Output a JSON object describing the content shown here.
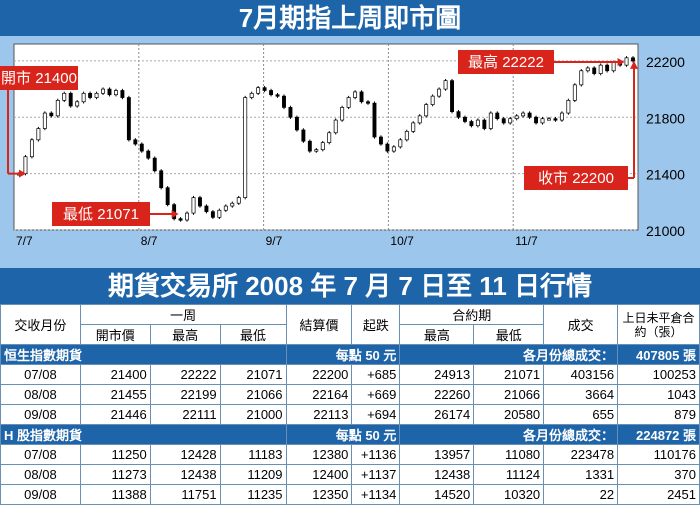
{
  "chart_title": "7月期指上周即市圖",
  "chart_data": {
    "type": "line",
    "x_labels": [
      "7/7",
      "8/7",
      "9/7",
      "10/7",
      "11/7"
    ],
    "y_ticks": [
      21000,
      21400,
      21800,
      22200
    ],
    "ylim": [
      21000,
      22320
    ],
    "series": [
      {
        "values": [
          21400,
          21520,
          21640,
          21720,
          21830,
          21810,
          21920,
          21970,
          21880,
          21910,
          21970,
          21940,
          21970,
          22000,
          21960,
          21990,
          21940,
          21640,
          21610,
          21560,
          21510,
          21420,
          21300,
          21180,
          21080,
          21071,
          21120,
          21230,
          21170,
          21130,
          21090,
          21140,
          21170,
          21190,
          21230,
          21940,
          21970,
          22010,
          21990,
          21960,
          21950,
          21870,
          21800,
          21710,
          21630,
          21560,
          21570,
          21620,
          21690,
          21780,
          21870,
          21940,
          21980,
          21910,
          21900,
          21660,
          21610,
          21560,
          21590,
          21640,
          21700,
          21760,
          21810,
          21890,
          21950,
          22000,
          22060,
          21840,
          21800,
          21770,
          21740,
          21780,
          21720,
          21830,
          21790,
          21760,
          21790,
          21810,
          21830,
          21800,
          21760,
          21790,
          21790,
          21780,
          21830,
          21920,
          22030,
          22130,
          22150,
          22110,
          22170,
          22130,
          22190,
          22170,
          22222,
          22200
        ]
      }
    ],
    "annotations": {
      "open": "開市 21400",
      "high": "最高 22222",
      "low": "最低 21071",
      "close": "收市 22200"
    }
  },
  "table_title": "期貨交易所 2008 年 7 月 7 日至 11 日行情",
  "table": {
    "headers": {
      "month": "交收月份",
      "week": "一周",
      "open": "開市價",
      "high": "最高",
      "low": "最低",
      "settle": "結算價",
      "change": "起跌",
      "contract": "合約期",
      "c_high": "最高",
      "c_low": "最低",
      "volume": "成交",
      "oi": "上日未平倉合約（張）"
    },
    "sections": [
      {
        "name": "恒生指數期貨",
        "point": "每點 50 元",
        "total_label": "各月份總成交：",
        "total": "407805 張",
        "rows": [
          [
            "07/08",
            "21400",
            "22222",
            "21071",
            "22200",
            "+685",
            "24913",
            "21071",
            "403156",
            "100253"
          ],
          [
            "08/08",
            "21455",
            "22199",
            "21066",
            "22164",
            "+669",
            "22260",
            "21066",
            "3664",
            "1043"
          ],
          [
            "09/08",
            "21446",
            "22111",
            "21000",
            "22113",
            "+694",
            "26174",
            "20580",
            "655",
            "879"
          ]
        ]
      },
      {
        "name": "H 股指數期貨",
        "point": "每點 50 元",
        "total_label": "各月份總成交：",
        "total": "224872 張",
        "rows": [
          [
            "07/08",
            "11250",
            "12428",
            "11183",
            "12380",
            "+1136",
            "13957",
            "11080",
            "223478",
            "110176"
          ],
          [
            "08/08",
            "11273",
            "12438",
            "11209",
            "12400",
            "+1137",
            "12438",
            "11124",
            "1331",
            "370"
          ],
          [
            "09/08",
            "11388",
            "11751",
            "11235",
            "12350",
            "+1134",
            "14520",
            "10320",
            "22",
            "2451"
          ]
        ]
      }
    ]
  }
}
